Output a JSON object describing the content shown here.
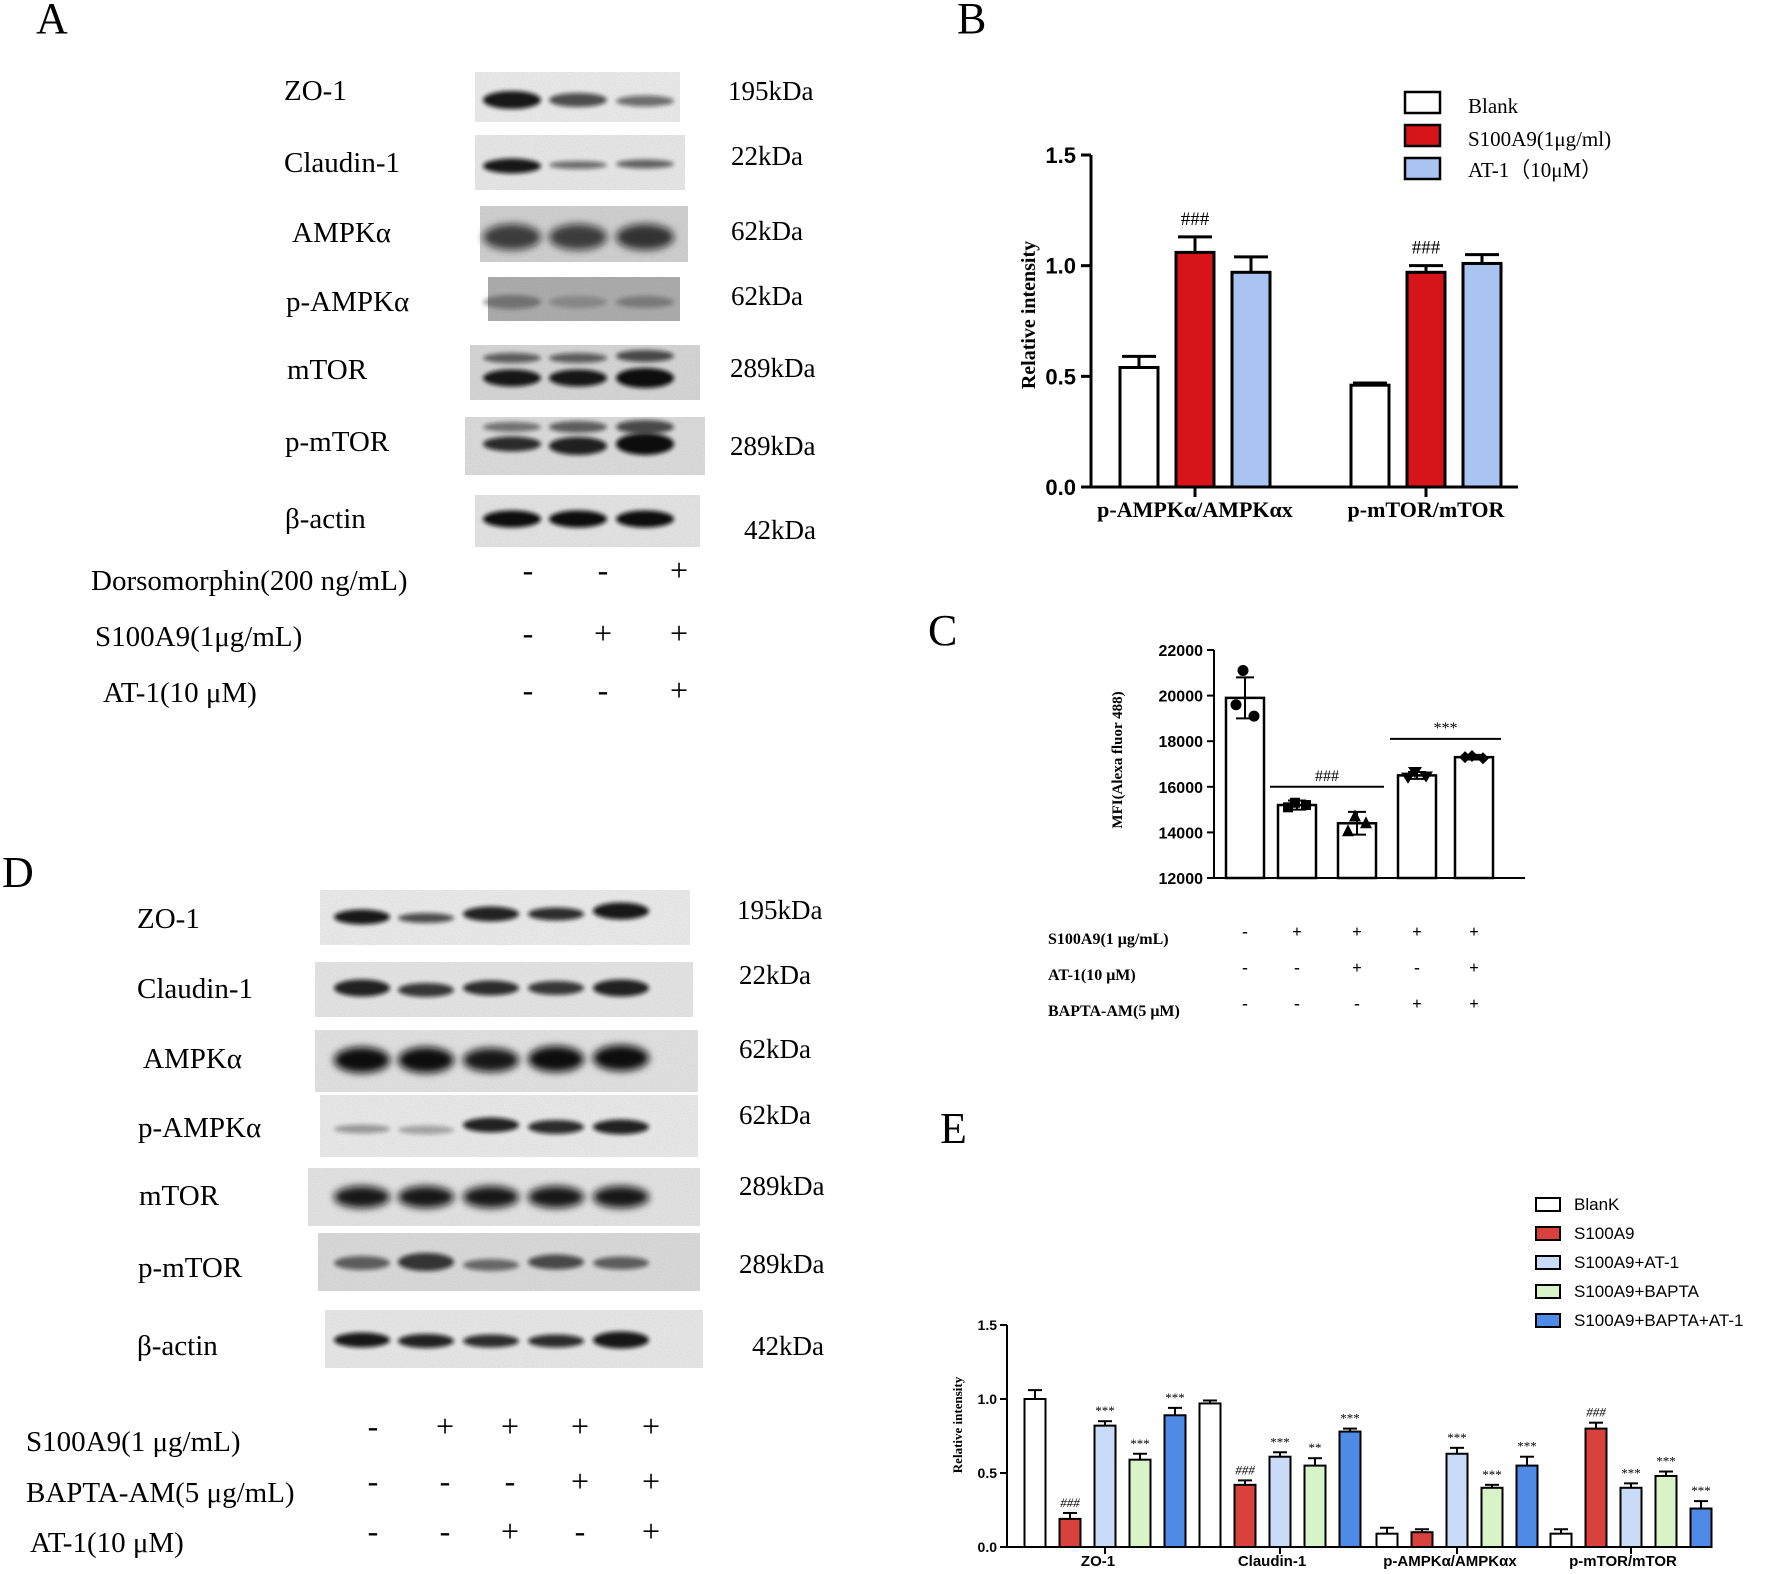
{
  "panelA": {
    "letter": "A",
    "rows": [
      {
        "label": "ZO-1",
        "kda": "195kDa"
      },
      {
        "label": "Claudin-1",
        "kda": "22kDa"
      },
      {
        "label": "AMPKα",
        "kda": "62kDa"
      },
      {
        "label": "p-AMPKα",
        "kda": "62kDa"
      },
      {
        "label": "mTOR",
        "kda": "289kDa"
      },
      {
        "label": "p-mTOR",
        "kda": "289kDa"
      },
      {
        "label": "β-actin",
        "kda": "42kDa"
      }
    ],
    "treatments": [
      {
        "label": "Dorsomorphin(200 ng/mL)",
        "signs": [
          "-",
          "-",
          "+"
        ]
      },
      {
        "label": "S100A9(1μg/mL)",
        "signs": [
          "-",
          "+",
          "+"
        ]
      },
      {
        "label": "AT-1(10 μM)",
        "signs": [
          "-",
          "-",
          "+"
        ]
      }
    ]
  },
  "panelB": {
    "letter": "B",
    "chart_data": {
      "type": "bar",
      "categories": [
        "p-AMPKα/AMPKαx",
        "p-mTOR/mTOR"
      ],
      "series": [
        {
          "name": "Blank",
          "values": [
            0.54,
            0.46
          ],
          "errors": [
            0.05,
            0.01
          ],
          "color": "#ffffff"
        },
        {
          "name": "S100A9(1μg/ml)",
          "values": [
            1.06,
            0.97
          ],
          "errors": [
            0.07,
            0.03
          ],
          "color": "#d7141a"
        },
        {
          "name": "AT-1（10μM）",
          "values": [
            0.97,
            1.01
          ],
          "errors": [
            0.07,
            0.04
          ],
          "color": "#a9c4f0"
        }
      ],
      "annotations": [
        {
          "category": 0,
          "series": 1,
          "text": "###"
        },
        {
          "category": 1,
          "series": 1,
          "text": "###"
        }
      ],
      "ylabel": "Relative intensity",
      "ylim": [
        0,
        1.5
      ],
      "yticks": [
        "0.0",
        "0.5",
        "1.0",
        "1.5"
      ],
      "legend": "top-right"
    }
  },
  "panelC": {
    "letter": "C",
    "chart_data": {
      "type": "bar",
      "values": [
        19900,
        15200,
        14400,
        16500,
        17300
      ],
      "errors": [
        900,
        200,
        500,
        150,
        100
      ],
      "points": [
        [
          21100,
          19600,
          19100
        ],
        [
          15300,
          15100,
          15200
        ],
        [
          14700,
          14050,
          14400
        ],
        [
          16650,
          16400,
          16450
        ],
        [
          17350,
          17300,
          17250
        ]
      ],
      "ylabel": "MFI(Alexa fluor 488)",
      "ylim": [
        12000,
        22000
      ],
      "yticks": [
        "12000",
        "14000",
        "16000",
        "18000",
        "20000",
        "22000"
      ],
      "annotations": [
        {
          "from": 1,
          "to": 2,
          "text": "###"
        },
        {
          "from": 3,
          "to": 4,
          "text": "***"
        }
      ]
    },
    "treatments": [
      {
        "label": "S100A9(1 μg/mL)",
        "signs": [
          "-",
          "+",
          "+",
          "+",
          "+"
        ]
      },
      {
        "label": "AT-1(10 μM)",
        "signs": [
          "-",
          "-",
          "+",
          "-",
          "+"
        ]
      },
      {
        "label": "BAPTA-AM(5 μM)",
        "signs": [
          "-",
          "-",
          "-",
          "+",
          "+"
        ]
      }
    ]
  },
  "panelD": {
    "letter": "D",
    "rows": [
      {
        "label": "ZO-1",
        "kda": "195kDa"
      },
      {
        "label": "Claudin-1",
        "kda": "22kDa"
      },
      {
        "label": "AMPKα",
        "kda": "62kDa"
      },
      {
        "label": "p-AMPKα",
        "kda": "62kDa"
      },
      {
        "label": "mTOR",
        "kda": "289kDa"
      },
      {
        "label": "p-mTOR",
        "kda": "289kDa"
      },
      {
        "label": "β-actin",
        "kda": "42kDa"
      }
    ],
    "treatments": [
      {
        "label": "S100A9(1 μg/mL)",
        "signs": [
          "-",
          "+",
          "+",
          "+",
          "+"
        ]
      },
      {
        "label": "BAPTA-AM(5 μg/mL)",
        "signs": [
          "-",
          "-",
          "-",
          "+",
          "+"
        ]
      },
      {
        "label": "AT-1(10 μM)",
        "signs": [
          "-",
          "-",
          "+",
          "-",
          "+"
        ]
      }
    ]
  },
  "panelE": {
    "letter": "E",
    "chart_data": {
      "type": "bar",
      "categories": [
        "ZO-1",
        "Claudin-1",
        "p-AMPKα/AMPKαx",
        "p-mTOR/mTOR"
      ],
      "series": [
        {
          "name": "BlanK",
          "values": [
            1.0,
            0.97,
            0.09,
            0.09
          ],
          "errors": [
            0.06,
            0.02,
            0.04,
            0.03
          ],
          "color": "#ffffff"
        },
        {
          "name": "S100A9",
          "values": [
            0.19,
            0.42,
            0.1,
            0.8
          ],
          "errors": [
            0.04,
            0.03,
            0.02,
            0.04
          ],
          "color": "#d9413d"
        },
        {
          "name": "S100A9+AT-1",
          "values": [
            0.82,
            0.61,
            0.63,
            0.4
          ],
          "errors": [
            0.03,
            0.03,
            0.04,
            0.03
          ],
          "color": "#c9dbf7"
        },
        {
          "name": "S100A9+BAPTA",
          "values": [
            0.59,
            0.55,
            0.4,
            0.48
          ],
          "errors": [
            0.04,
            0.05,
            0.02,
            0.03
          ],
          "color": "#d8f3c8"
        },
        {
          "name": "S100A9+BAPTA+AT-1",
          "values": [
            0.89,
            0.78,
            0.55,
            0.26
          ],
          "errors": [
            0.05,
            0.02,
            0.06,
            0.05
          ],
          "color": "#4e8ae6"
        }
      ],
      "annotations": [
        [
          "",
          "###",
          "***",
          "***",
          "***"
        ],
        [
          "",
          "###",
          "***",
          "**",
          "***"
        ],
        [
          "",
          "",
          "***",
          "***",
          "***"
        ],
        [
          "",
          "###",
          "***",
          "***",
          "***"
        ]
      ],
      "ylabel": "Relative intensity",
      "ylim": [
        0,
        1.5
      ],
      "yticks": [
        "0.0",
        "0.5",
        "1.0",
        "1.5"
      ],
      "legend": "top-right"
    }
  }
}
